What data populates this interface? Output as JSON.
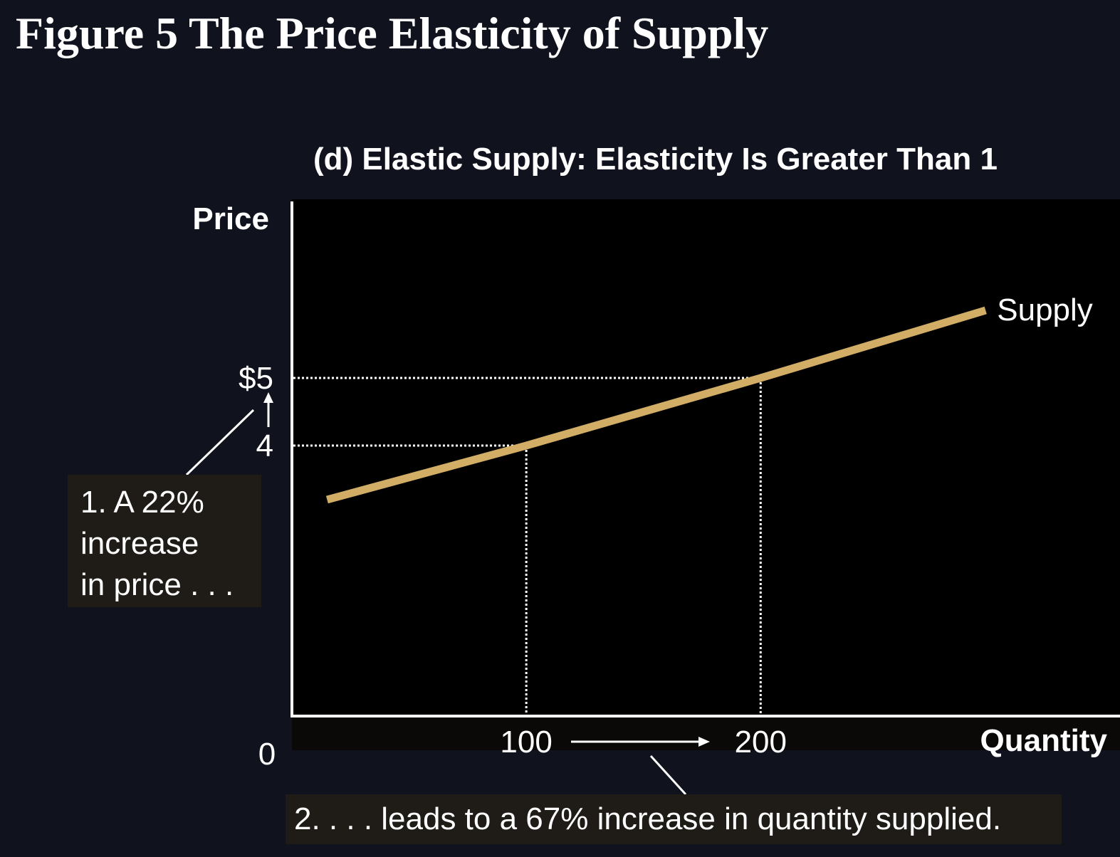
{
  "figure_title": "Figure 5 The Price Elasticity of Supply",
  "chart_data": {
    "type": "line",
    "title": "(d) Elastic Supply: Elasticity Is Greater Than 1",
    "xlabel": "Quantity",
    "ylabel": "Price",
    "origin_label": "0",
    "x_ticks": [
      {
        "value": 100,
        "label": "100"
      },
      {
        "value": 200,
        "label": "200"
      }
    ],
    "y_ticks": [
      {
        "value": 4,
        "label": "4"
      },
      {
        "value": 5,
        "label": "$5"
      }
    ],
    "xlim": [
      0,
      350
    ],
    "ylim": [
      0,
      7.6
    ],
    "series": [
      {
        "name": "Supply",
        "color": "#d2ad66",
        "points": [
          [
            15,
            3.2
          ],
          [
            100,
            4
          ],
          [
            200,
            5
          ],
          [
            296,
            6
          ]
        ]
      }
    ],
    "reference_points": [
      {
        "x": 100,
        "y": 4
      },
      {
        "x": 200,
        "y": 5
      }
    ],
    "annotations": {
      "price_change": [
        "1. A 22%",
        "increase",
        "in price . . ."
      ],
      "quantity_change": "2. . . . leads to a 67% increase in quantity supplied."
    },
    "colors": {
      "background": "#10121d",
      "plot_area": "#000000",
      "axis": "#ffffff",
      "callout_bg": "#1f1b17"
    }
  }
}
